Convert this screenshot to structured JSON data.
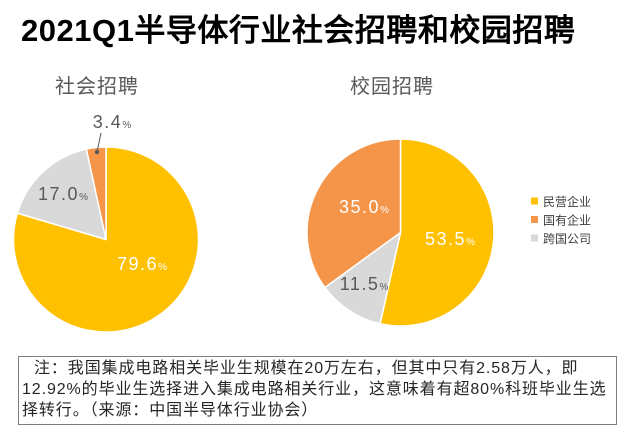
{
  "title": "2021Q1半导体行业社会招聘和校园招聘",
  "chart_data": [
    {
      "type": "pie",
      "title": "社会招聘",
      "categories": [
        "民营企业",
        "国有企业",
        "跨国公司"
      ],
      "values": [
        79.6,
        3.4,
        17.0
      ],
      "unit": "%",
      "colors": [
        "#FFC000",
        "#F4954A",
        "#D9D9D9"
      ],
      "legend": "right"
    },
    {
      "type": "pie",
      "title": "校园招聘",
      "categories": [
        "民营企业",
        "国有企业",
        "跨国公司"
      ],
      "values": [
        53.5,
        35.0,
        11.5
      ],
      "unit": "%",
      "colors": [
        "#FFC000",
        "#F4954A",
        "#D9D9D9"
      ],
      "legend": "right"
    }
  ],
  "note": {
    "lines": [
      "注：我国集成电路相关毕业生规模在20万左右，但其中只有2.58万人，即",
      "12.92%的毕业生选择进入集成电路相关行业，这意味着有超80%科班毕业生选",
      "择转行。（来源：中国半导体行业协会）"
    ]
  }
}
